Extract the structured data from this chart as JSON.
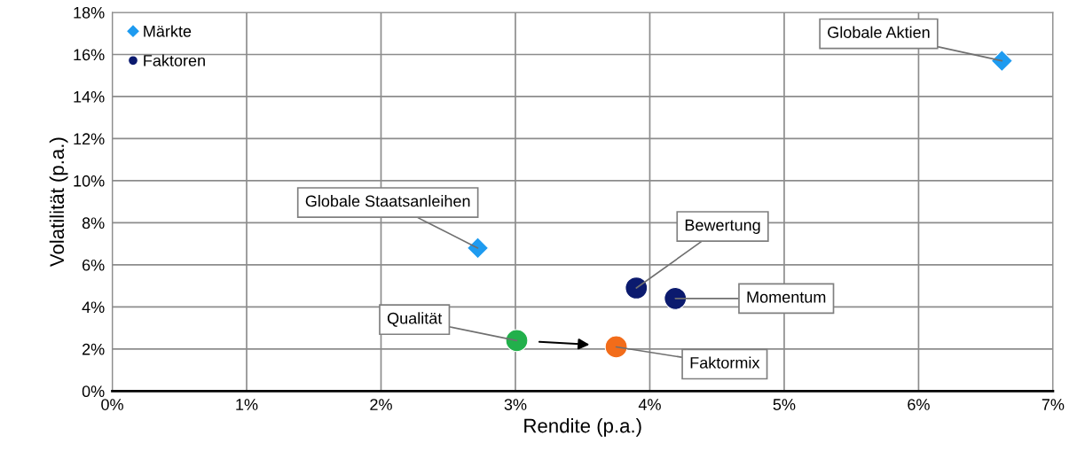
{
  "chart_data": {
    "type": "scatter",
    "xlabel": "Rendite (p.a.)",
    "ylabel": "Volatilität (p.a.)",
    "xlim": [
      0,
      7
    ],
    "ylim": [
      0,
      18
    ],
    "xticks": [
      {
        "value": 0,
        "label": "0%"
      },
      {
        "value": 1,
        "label": "1%"
      },
      {
        "value": 2,
        "label": "2%"
      },
      {
        "value": 3,
        "label": "3%"
      },
      {
        "value": 4,
        "label": "4%"
      },
      {
        "value": 5,
        "label": "5%"
      },
      {
        "value": 6,
        "label": "6%"
      },
      {
        "value": 7,
        "label": "7%"
      }
    ],
    "yticks": [
      {
        "value": 0,
        "label": "0%"
      },
      {
        "value": 2,
        "label": "2%"
      },
      {
        "value": 4,
        "label": "4%"
      },
      {
        "value": 6,
        "label": "6%"
      },
      {
        "value": 8,
        "label": "8%"
      },
      {
        "value": 10,
        "label": "10%"
      },
      {
        "value": 12,
        "label": "12%"
      },
      {
        "value": 14,
        "label": "14%"
      },
      {
        "value": 16,
        "label": "16%"
      },
      {
        "value": 18,
        "label": "18%"
      }
    ],
    "grid": true,
    "legend": "top left",
    "series": [
      {
        "name": "Märkte",
        "color": "#1e9bf0",
        "marker": "diamond",
        "x": [
          6.62,
          2.72
        ],
        "values": [
          15.7,
          6.8
        ]
      },
      {
        "name": "Faktoren",
        "color": "#0b1a6e",
        "marker": "circle",
        "x": [
          3.9,
          4.19,
          3.01,
          3.75
        ],
        "values": [
          4.9,
          4.4,
          2.4,
          2.1
        ],
        "colors": [
          "#0b1a6e",
          "#0b1a6e",
          "#22b04b",
          "#f26c1a"
        ]
      }
    ],
    "annotations": [
      {
        "text": "Globale Aktien",
        "x": 6.62,
        "y": 15.7
      },
      {
        "text": "Globale Staatsanleihen",
        "x": 2.72,
        "y": 6.8
      },
      {
        "text": "Bewertung",
        "x": 3.9,
        "y": 4.9
      },
      {
        "text": "Momentum",
        "x": 4.19,
        "y": 4.4
      },
      {
        "text": "Qualität",
        "x": 3.01,
        "y": 2.4
      },
      {
        "text": "Faktormix",
        "x": 3.75,
        "y": 2.1
      }
    ]
  }
}
